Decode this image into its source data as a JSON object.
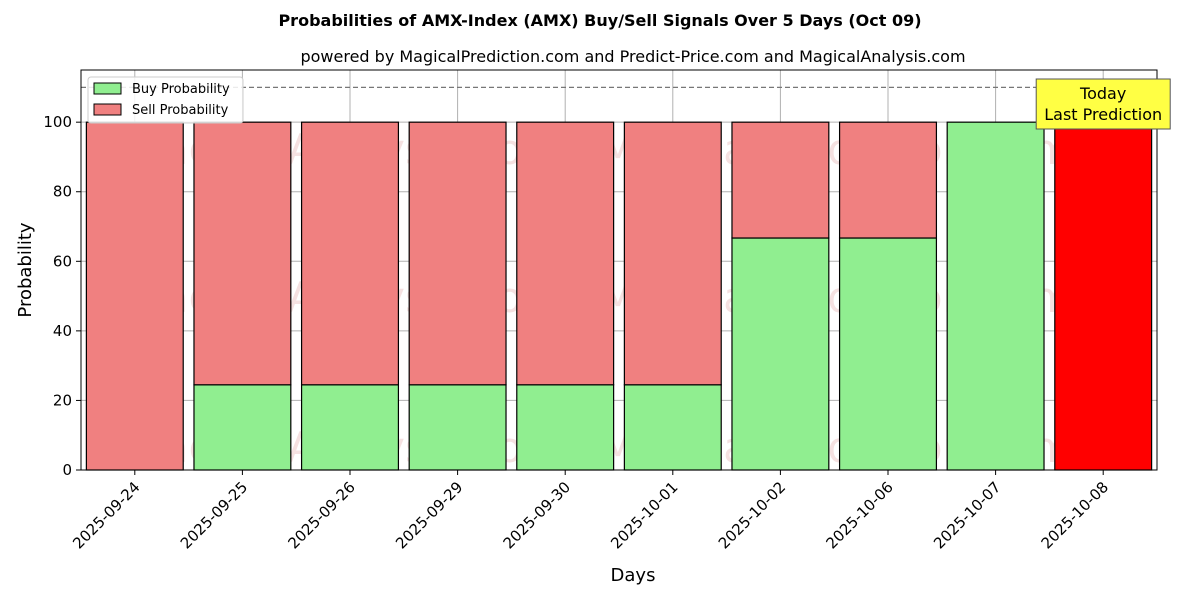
{
  "chart_data": {
    "type": "bar",
    "stacked": true,
    "title": "Probabilities of AMX-Index (AMX) Buy/Sell Signals Over 5 Days (Oct 09)",
    "subtitle": "powered by MagicalPrediction.com and Predict-Price.com and MagicalAnalysis.com",
    "xlabel": "Days",
    "ylabel": "Probability",
    "ylim": [
      0,
      115
    ],
    "yticks": [
      0,
      20,
      40,
      60,
      80,
      100
    ],
    "grid": true,
    "legend_position": "top-left",
    "reference_line": 110,
    "categories": [
      "2025-09-24",
      "2025-09-25",
      "2025-09-26",
      "2025-09-29",
      "2025-09-30",
      "2025-10-01",
      "2025-10-02",
      "2025-10-06",
      "2025-10-07",
      "2025-10-08"
    ],
    "series": [
      {
        "name": "Buy Probability",
        "color": "#90ee90",
        "values": [
          0,
          24.5,
          24.5,
          24.5,
          24.5,
          24.5,
          66.7,
          66.7,
          100,
          0
        ]
      },
      {
        "name": "Sell Probability",
        "color": "#f08080",
        "values": [
          100,
          75.5,
          75.5,
          75.5,
          75.5,
          75.5,
          33.3,
          33.3,
          0,
          100
        ]
      }
    ],
    "highlight": {
      "index": 9,
      "color": "#ff0000"
    },
    "annotation": {
      "line1": "Today",
      "line2": "Last Prediction",
      "color": "#ffff44"
    },
    "watermarks": [
      "MagicalAnalysis.com",
      "MagicalPrediction.com"
    ]
  }
}
